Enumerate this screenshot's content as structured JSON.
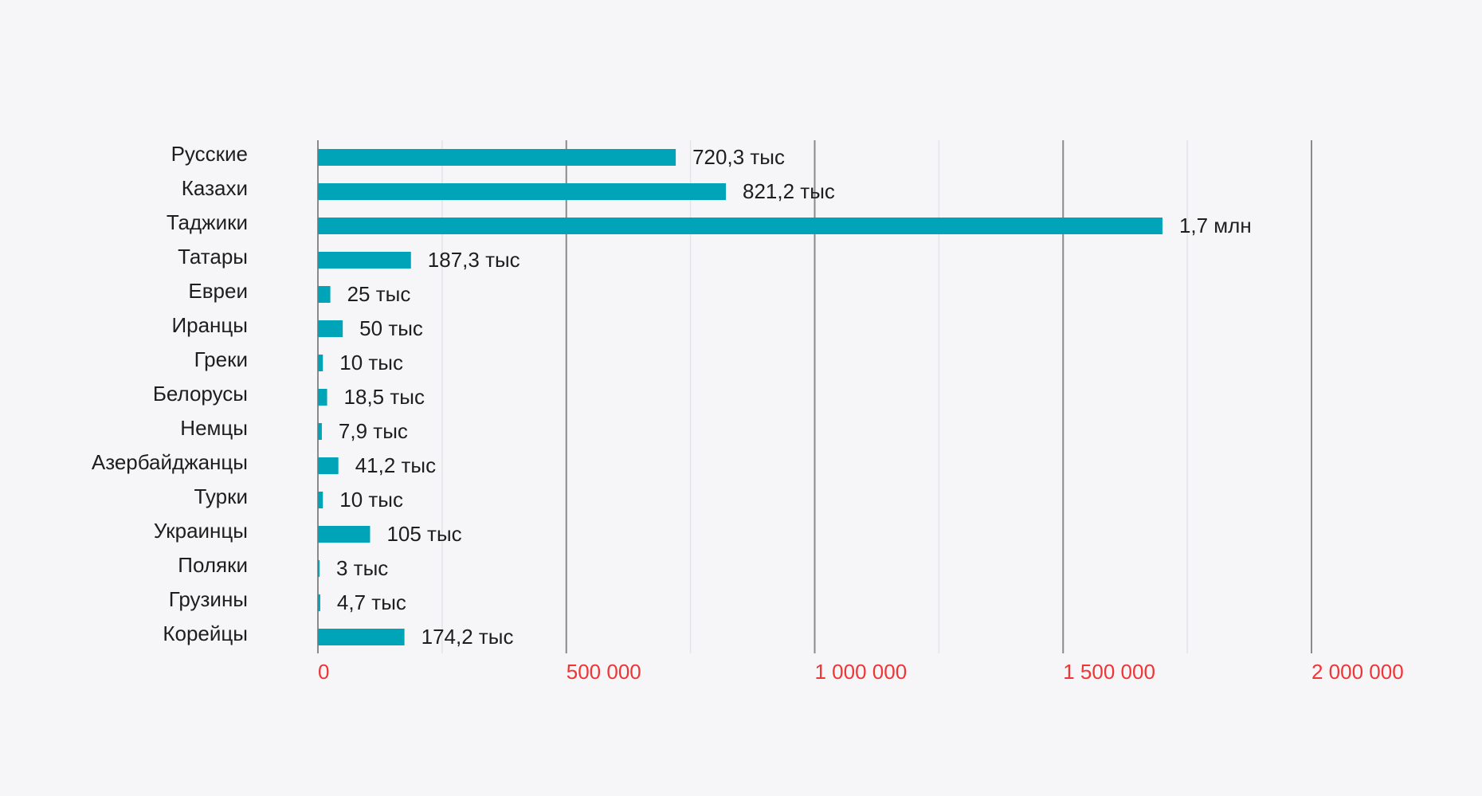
{
  "chart_data": {
    "type": "bar",
    "orientation": "horizontal",
    "title": "",
    "xlabel": "",
    "ylabel": "",
    "xlim": [
      0,
      2000000
    ],
    "grid": true,
    "categories": [
      "Русские",
      "Казахи",
      "Таджики",
      "Татары",
      "Евреи",
      "Иранцы",
      "Греки",
      "Белорусы",
      "Немцы",
      "Азербайджанцы",
      "Турки",
      "Украинцы",
      "Поляки",
      "Грузины",
      "Корейцы"
    ],
    "values": [
      720300,
      821200,
      1700000,
      187300,
      25000,
      50000,
      10000,
      18500,
      7900,
      41200,
      10000,
      105000,
      3000,
      4700,
      174200
    ],
    "data_labels": [
      "720,3 тыс",
      "821,2 тыс",
      "1,7 млн",
      "187,3 тыс",
      "25 тыс",
      "50 тыс",
      "10 тыс",
      "18,5 тыс",
      "7,9 тыс",
      "41,2 тыс",
      "10 тыс",
      "105 тыс",
      "3 тыс",
      "4,7 тыс",
      "174,2 тыс"
    ],
    "x_ticks": [
      0,
      500000,
      1000000,
      1500000,
      2000000
    ],
    "x_tick_labels": [
      "0",
      "500 000",
      "1 000 000",
      "1 500 000",
      "2 000 000"
    ],
    "colors": {
      "bar": "#00a4b9",
      "tick_label": "#ef3535",
      "major_grid": "#8a8a8a",
      "minor_grid": "#e4e4e8"
    }
  }
}
